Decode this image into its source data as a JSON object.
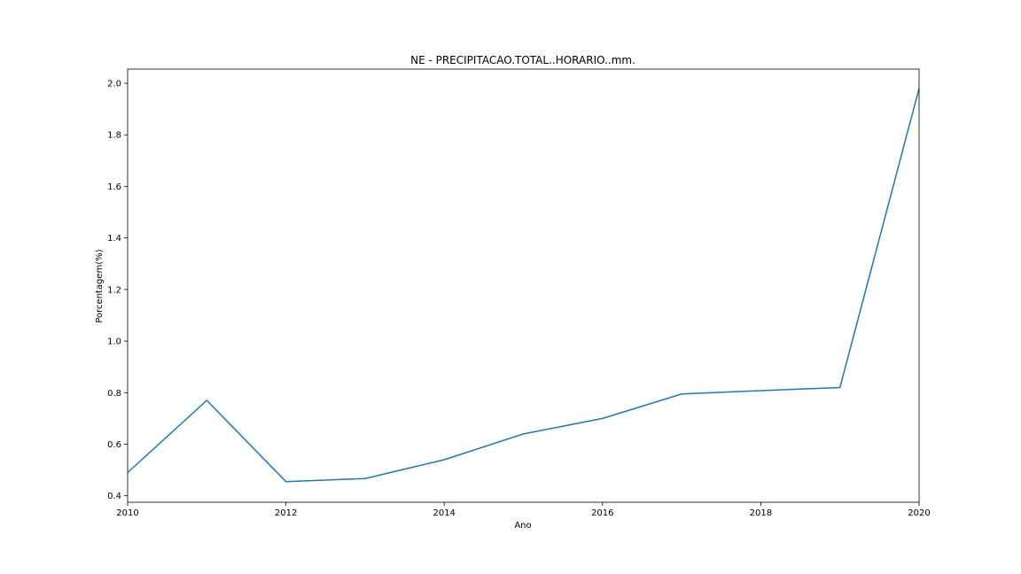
{
  "chart_data": {
    "type": "line",
    "title": "NE - PRECIPITACAO.TOTAL..HORARIO..mm.",
    "xlabel": "Ano",
    "ylabel": "Porcentagem(%)",
    "x": [
      2010,
      2011,
      2012,
      2013,
      2014,
      2015,
      2016,
      2017,
      2018,
      2019,
      2020
    ],
    "series": [
      {
        "values": [
          0.49,
          0.77,
          0.455,
          0.467,
          0.54,
          0.64,
          0.7,
          0.795,
          0.808,
          0.82,
          1.98
        ],
        "color": "#1f77b4"
      }
    ],
    "xlim": [
      2010,
      2020
    ],
    "ylim": [
      0.375,
      2.055
    ],
    "xticks": [
      "2010",
      "2012",
      "2014",
      "2016",
      "2018",
      "2020"
    ],
    "yticks": [
      "0.4",
      "0.6",
      "0.8",
      "1.0",
      "1.2",
      "1.4",
      "1.6",
      "1.8",
      "2.0"
    ],
    "grid": false
  }
}
